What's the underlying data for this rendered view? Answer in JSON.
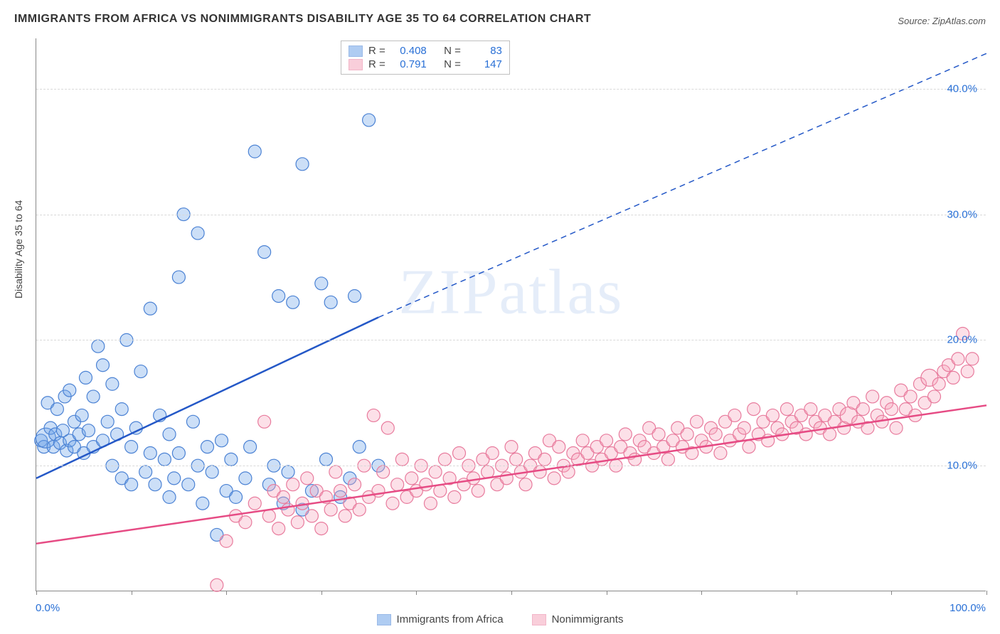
{
  "title": "IMMIGRANTS FROM AFRICA VS NONIMMIGRANTS DISABILITY AGE 35 TO 64 CORRELATION CHART",
  "source_label": "Source:",
  "source_value": "ZipAtlas.com",
  "ylabel": "Disability Age 35 to 64",
  "watermark": "ZIPatlas",
  "chart": {
    "type": "scatter",
    "background_color": "#ffffff",
    "grid_color": "#d8d8d8",
    "axis_color": "#888888",
    "xlim": [
      0,
      100
    ],
    "ylim": [
      0,
      44
    ],
    "x_tick_positions": [
      0,
      10,
      20,
      30,
      40,
      50,
      60,
      70,
      80,
      90,
      100
    ],
    "x_tick_labels": {
      "0": "0.0%",
      "100": "100.0%"
    },
    "y_grid_positions": [
      10,
      20,
      30,
      40
    ],
    "y_tick_labels": {
      "10": "10.0%",
      "20": "20.0%",
      "30": "30.0%",
      "40": "40.0%"
    },
    "marker_radius": 9,
    "marker_stroke_width": 1.2,
    "marker_fill_opacity": 0.35,
    "trendline_width": 2.5,
    "series": [
      {
        "id": "immigrants",
        "label": "Immigrants from Africa",
        "fill_color": "#6ea3e8",
        "stroke_color": "#4b82d4",
        "line_color": "#2458c7",
        "R": "0.408",
        "N": "83",
        "trend": {
          "x1": 0,
          "y1": 9.0,
          "x2": 36,
          "y2": 21.8
        },
        "trend_ext": {
          "x1": 36,
          "y1": 21.8,
          "x2": 100,
          "y2": 42.8
        },
        "points": [
          [
            0.5,
            12.0
          ],
          [
            0.8,
            11.5
          ],
          [
            1.0,
            12.2,
            14
          ],
          [
            1.2,
            15.0
          ],
          [
            1.5,
            13.0
          ],
          [
            1.8,
            11.5
          ],
          [
            2.0,
            12.5
          ],
          [
            2.2,
            14.5
          ],
          [
            2.5,
            11.8
          ],
          [
            2.8,
            12.8
          ],
          [
            3.0,
            15.5
          ],
          [
            3.2,
            11.2
          ],
          [
            3.5,
            12.0
          ],
          [
            3.5,
            16.0
          ],
          [
            4.0,
            11.5
          ],
          [
            4.0,
            13.5
          ],
          [
            4.5,
            12.5
          ],
          [
            4.8,
            14.0
          ],
          [
            5.0,
            11.0
          ],
          [
            5.2,
            17.0
          ],
          [
            5.5,
            12.8
          ],
          [
            6.0,
            11.5
          ],
          [
            6.0,
            15.5
          ],
          [
            6.5,
            19.5
          ],
          [
            7.0,
            12.0
          ],
          [
            7.0,
            18.0
          ],
          [
            7.5,
            13.5
          ],
          [
            8.0,
            10.0
          ],
          [
            8.0,
            16.5
          ],
          [
            8.5,
            12.5
          ],
          [
            9.0,
            9.0
          ],
          [
            9.0,
            14.5
          ],
          [
            9.5,
            20.0
          ],
          [
            10.0,
            8.5
          ],
          [
            10.0,
            11.5
          ],
          [
            10.5,
            13.0
          ],
          [
            11.0,
            17.5
          ],
          [
            11.5,
            9.5
          ],
          [
            12.0,
            11.0
          ],
          [
            12.0,
            22.5
          ],
          [
            12.5,
            8.5
          ],
          [
            13.0,
            14.0
          ],
          [
            13.5,
            10.5
          ],
          [
            14.0,
            7.5
          ],
          [
            14.0,
            12.5
          ],
          [
            14.5,
            9.0
          ],
          [
            15.0,
            11.0
          ],
          [
            15.0,
            25.0
          ],
          [
            15.5,
            30.0
          ],
          [
            16.0,
            8.5
          ],
          [
            16.5,
            13.5
          ],
          [
            17.0,
            10.0
          ],
          [
            17.0,
            28.5
          ],
          [
            17.5,
            7.0
          ],
          [
            18.0,
            11.5
          ],
          [
            18.5,
            9.5
          ],
          [
            19.0,
            4.5
          ],
          [
            19.5,
            12.0
          ],
          [
            20.0,
            8.0
          ],
          [
            20.5,
            10.5
          ],
          [
            21.0,
            7.5
          ],
          [
            22.0,
            9.0
          ],
          [
            22.5,
            11.5
          ],
          [
            23.0,
            35.0
          ],
          [
            24.0,
            27.0
          ],
          [
            24.5,
            8.5
          ],
          [
            25.0,
            10.0
          ],
          [
            25.5,
            23.5
          ],
          [
            26.0,
            7.0
          ],
          [
            26.5,
            9.5
          ],
          [
            27.0,
            23.0
          ],
          [
            28.0,
            6.5
          ],
          [
            28.0,
            34.0
          ],
          [
            29.0,
            8.0
          ],
          [
            30.0,
            24.5
          ],
          [
            30.5,
            10.5
          ],
          [
            31.0,
            23.0
          ],
          [
            32.0,
            7.5
          ],
          [
            33.0,
            9.0
          ],
          [
            34.0,
            11.5
          ],
          [
            35.0,
            37.5
          ],
          [
            36.0,
            10.0
          ],
          [
            33.5,
            23.5
          ]
        ]
      },
      {
        "id": "nonimmigrants",
        "label": "Nonimmigrants",
        "fill_color": "#f5a7bd",
        "stroke_color": "#e87b9d",
        "line_color": "#e64b84",
        "R": "0.791",
        "N": "147",
        "trend": {
          "x1": 0,
          "y1": 3.8,
          "x2": 100,
          "y2": 14.8
        },
        "trend_ext": null,
        "points": [
          [
            19.0,
            0.5
          ],
          [
            20.0,
            4.0
          ],
          [
            21.0,
            6.0
          ],
          [
            22.0,
            5.5
          ],
          [
            23.0,
            7.0
          ],
          [
            24.0,
            13.5
          ],
          [
            24.5,
            6.0
          ],
          [
            25.0,
            8.0
          ],
          [
            25.5,
            5.0
          ],
          [
            26.0,
            7.5
          ],
          [
            26.5,
            6.5
          ],
          [
            27.0,
            8.5
          ],
          [
            27.5,
            5.5
          ],
          [
            28.0,
            7.0
          ],
          [
            28.5,
            9.0
          ],
          [
            29.0,
            6.0
          ],
          [
            29.5,
            8.0
          ],
          [
            30.0,
            5.0
          ],
          [
            30.5,
            7.5
          ],
          [
            31.0,
            6.5
          ],
          [
            31.5,
            9.5
          ],
          [
            32.0,
            8.0
          ],
          [
            32.5,
            6.0
          ],
          [
            33.0,
            7.0
          ],
          [
            33.5,
            8.5
          ],
          [
            34.0,
            6.5
          ],
          [
            34.5,
            10.0
          ],
          [
            35.0,
            7.5
          ],
          [
            35.5,
            14.0
          ],
          [
            36.0,
            8.0
          ],
          [
            36.5,
            9.5
          ],
          [
            37.0,
            13.0
          ],
          [
            37.5,
            7.0
          ],
          [
            38.0,
            8.5
          ],
          [
            38.5,
            10.5
          ],
          [
            39.0,
            7.5
          ],
          [
            39.5,
            9.0
          ],
          [
            40.0,
            8.0
          ],
          [
            40.5,
            10.0
          ],
          [
            41.0,
            8.5
          ],
          [
            41.5,
            7.0
          ],
          [
            42.0,
            9.5
          ],
          [
            42.5,
            8.0
          ],
          [
            43.0,
            10.5
          ],
          [
            43.5,
            9.0
          ],
          [
            44.0,
            7.5
          ],
          [
            44.5,
            11.0
          ],
          [
            45.0,
            8.5
          ],
          [
            45.5,
            10.0
          ],
          [
            46.0,
            9.0
          ],
          [
            46.5,
            8.0
          ],
          [
            47.0,
            10.5
          ],
          [
            47.5,
            9.5
          ],
          [
            48.0,
            11.0
          ],
          [
            48.5,
            8.5
          ],
          [
            49.0,
            10.0
          ],
          [
            49.5,
            9.0
          ],
          [
            50.0,
            11.5
          ],
          [
            50.5,
            10.5
          ],
          [
            51.0,
            9.5
          ],
          [
            51.5,
            8.5
          ],
          [
            52.0,
            10.0
          ],
          [
            52.5,
            11.0
          ],
          [
            53.0,
            9.5
          ],
          [
            53.5,
            10.5
          ],
          [
            54.0,
            12.0
          ],
          [
            54.5,
            9.0
          ],
          [
            55.0,
            11.5
          ],
          [
            55.5,
            10.0
          ],
          [
            56.0,
            9.5
          ],
          [
            56.5,
            11.0
          ],
          [
            57.0,
            10.5
          ],
          [
            57.5,
            12.0
          ],
          [
            58.0,
            11.0
          ],
          [
            58.5,
            10.0
          ],
          [
            59.0,
            11.5
          ],
          [
            59.5,
            10.5
          ],
          [
            60.0,
            12.0
          ],
          [
            60.5,
            11.0
          ],
          [
            61.0,
            10.0
          ],
          [
            61.5,
            11.5
          ],
          [
            62.0,
            12.5
          ],
          [
            62.5,
            11.0
          ],
          [
            63.0,
            10.5
          ],
          [
            63.5,
            12.0
          ],
          [
            64.0,
            11.5
          ],
          [
            64.5,
            13.0
          ],
          [
            65.0,
            11.0
          ],
          [
            65.5,
            12.5
          ],
          [
            66.0,
            11.5
          ],
          [
            66.5,
            10.5
          ],
          [
            67.0,
            12.0
          ],
          [
            67.5,
            13.0
          ],
          [
            68.0,
            11.5
          ],
          [
            68.5,
            12.5
          ],
          [
            69.0,
            11.0
          ],
          [
            69.5,
            13.5
          ],
          [
            70.0,
            12.0
          ],
          [
            70.5,
            11.5
          ],
          [
            71.0,
            13.0
          ],
          [
            71.5,
            12.5
          ],
          [
            72.0,
            11.0
          ],
          [
            72.5,
            13.5
          ],
          [
            73.0,
            12.0
          ],
          [
            73.5,
            14.0
          ],
          [
            74.0,
            12.5
          ],
          [
            74.5,
            13.0
          ],
          [
            75.0,
            11.5
          ],
          [
            75.5,
            14.5
          ],
          [
            76.0,
            12.5
          ],
          [
            76.5,
            13.5
          ],
          [
            77.0,
            12.0
          ],
          [
            77.5,
            14.0
          ],
          [
            78.0,
            13.0
          ],
          [
            78.5,
            12.5
          ],
          [
            79.0,
            14.5
          ],
          [
            79.5,
            13.5
          ],
          [
            80.0,
            13.0
          ],
          [
            80.5,
            14.0
          ],
          [
            81.0,
            12.5
          ],
          [
            81.5,
            14.5
          ],
          [
            82.0,
            13.5
          ],
          [
            82.5,
            13.0
          ],
          [
            83.0,
            14.0
          ],
          [
            83.5,
            12.5
          ],
          [
            84.0,
            13.5
          ],
          [
            84.5,
            14.5
          ],
          [
            85.0,
            13.0
          ],
          [
            85.5,
            14.0,
            12
          ],
          [
            86.0,
            15.0
          ],
          [
            86.5,
            13.5
          ],
          [
            87.0,
            14.5
          ],
          [
            87.5,
            13.0
          ],
          [
            88.0,
            15.5
          ],
          [
            88.5,
            14.0
          ],
          [
            89.0,
            13.5
          ],
          [
            89.5,
            15.0
          ],
          [
            90.0,
            14.5
          ],
          [
            90.5,
            13.0
          ],
          [
            91.0,
            16.0
          ],
          [
            91.5,
            14.5
          ],
          [
            92.0,
            15.5
          ],
          [
            92.5,
            14.0
          ],
          [
            93.0,
            16.5
          ],
          [
            93.5,
            15.0
          ],
          [
            94.0,
            17.0,
            12
          ],
          [
            94.5,
            15.5
          ],
          [
            95.0,
            16.5
          ],
          [
            95.5,
            17.5
          ],
          [
            96.0,
            18.0
          ],
          [
            96.5,
            17.0
          ],
          [
            97.0,
            18.5
          ],
          [
            97.5,
            20.5
          ],
          [
            98.0,
            17.5
          ],
          [
            98.5,
            18.5
          ]
        ]
      }
    ]
  },
  "stats_labels": {
    "R": "R =",
    "N": "N ="
  },
  "legend_position": "bottom-center"
}
